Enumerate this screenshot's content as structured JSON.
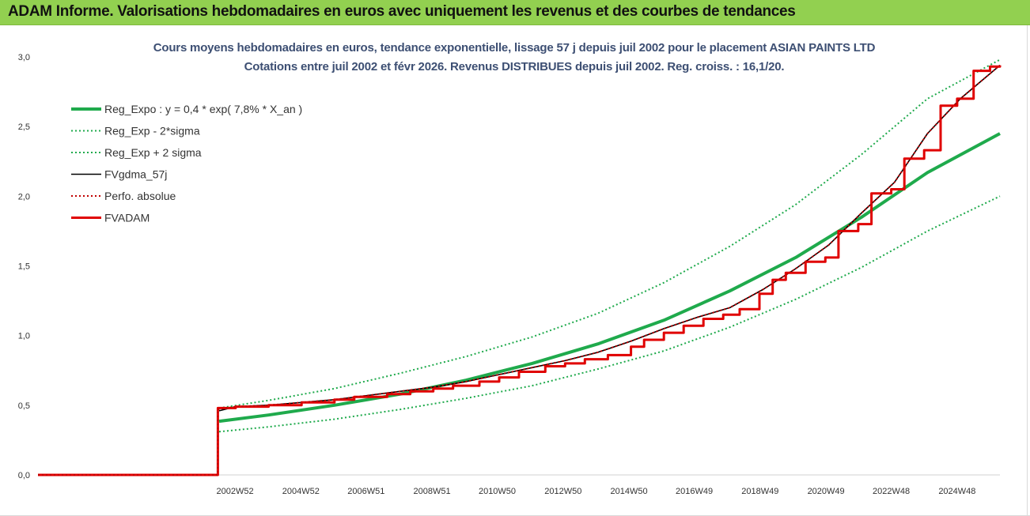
{
  "header": {
    "title": "ADAM Informe. Valorisations hebdomadaires en euros avec uniquement les revenus et des courbes de tendances"
  },
  "chart_data": {
    "type": "line",
    "title": "Cours moyens hebdomadaires en euros, tendance exponentielle, lissage 57 j depuis juil 2002 pour le placement ASIAN PAINTS LTD",
    "subtitle": "Cotations entre juil 2002 et févr 2026.  Revenus DISTRIBUES depuis juil 2002.  Reg. croiss. : 16,1/20.",
    "xlabel": "",
    "ylabel": "",
    "ylim": [
      0,
      3
    ],
    "y_ticks": [
      "0,0",
      "0,5",
      "1,0",
      "1,5",
      "2,0",
      "2,5",
      "3,0"
    ],
    "x_range": [
      1997.0,
      2026.2
    ],
    "x_ticks": [
      {
        "x": 2002.98,
        "label": "2002W52"
      },
      {
        "x": 2004.98,
        "label": "2004W52"
      },
      {
        "x": 2006.96,
        "label": "2006W51"
      },
      {
        "x": 2008.96,
        "label": "2008W51"
      },
      {
        "x": 2010.94,
        "label": "2010W50"
      },
      {
        "x": 2012.94,
        "label": "2012W50"
      },
      {
        "x": 2014.94,
        "label": "2014W50"
      },
      {
        "x": 2016.92,
        "label": "2016W49"
      },
      {
        "x": 2018.92,
        "label": "2018W49"
      },
      {
        "x": 2020.92,
        "label": "2020W49"
      },
      {
        "x": 2022.9,
        "label": "2022W48"
      },
      {
        "x": 2024.9,
        "label": "2024W48"
      }
    ],
    "grid": false,
    "legend_position": "top-left",
    "series": [
      {
        "name": "Reg_Expo : y = 0,4 * exp( 7,8% *  X_an )",
        "color": "#1faa4c",
        "style": "solid-thick",
        "x": [
          2002.5,
          2004,
          2006,
          2008,
          2010,
          2012,
          2014,
          2016,
          2018,
          2020,
          2022,
          2024,
          2026.2
        ],
        "y": [
          0.385,
          0.43,
          0.5,
          0.58,
          0.68,
          0.8,
          0.94,
          1.11,
          1.32,
          1.56,
          1.85,
          2.17,
          2.45
        ]
      },
      {
        "name": "Reg_Exp - 2*sigma",
        "color": "#1faa4c",
        "style": "dotted",
        "x": [
          2002.5,
          2004,
          2006,
          2008,
          2010,
          2012,
          2014,
          2016,
          2018,
          2020,
          2022,
          2024,
          2026.2
        ],
        "y": [
          0.31,
          0.345,
          0.4,
          0.47,
          0.55,
          0.64,
          0.76,
          0.89,
          1.06,
          1.26,
          1.49,
          1.75,
          2.0
        ]
      },
      {
        "name": "Reg_Exp + 2 sigma",
        "color": "#1faa4c",
        "style": "dotted",
        "x": [
          2002.5,
          2004,
          2006,
          2008,
          2010,
          2012,
          2014,
          2016,
          2018,
          2020,
          2022,
          2024,
          2026.2
        ],
        "y": [
          0.48,
          0.535,
          0.62,
          0.73,
          0.85,
          0.99,
          1.16,
          1.38,
          1.64,
          1.94,
          2.3,
          2.7,
          2.98
        ]
      },
      {
        "name": "FVgdma_57j",
        "color": "#000000",
        "style": "solid",
        "x": [
          2002.5,
          2003,
          2004,
          2005,
          2006,
          2007,
          2008,
          2009,
          2010,
          2011,
          2012,
          2013,
          2014,
          2015,
          2016,
          2017,
          2018,
          2019,
          2020,
          2021,
          2022,
          2023,
          2024,
          2025,
          2026.2
        ],
        "y": [
          0.46,
          0.49,
          0.5,
          0.52,
          0.54,
          0.57,
          0.6,
          0.63,
          0.67,
          0.72,
          0.77,
          0.82,
          0.88,
          0.96,
          1.05,
          1.13,
          1.2,
          1.33,
          1.48,
          1.65,
          1.88,
          2.1,
          2.45,
          2.7,
          2.94
        ]
      },
      {
        "name": "Perfo. absolue",
        "color": "#c00000",
        "style": "dotted",
        "x": [
          1997.0,
          2002.45,
          2002.46,
          2003,
          2004,
          2005,
          2006,
          2007,
          2008,
          2009,
          2010,
          2011,
          2012,
          2013,
          2014,
          2015,
          2016,
          2017,
          2018,
          2019,
          2020,
          2021,
          2022,
          2023,
          2024,
          2025,
          2026.2
        ],
        "y": [
          0,
          0,
          0.47,
          0.49,
          0.5,
          0.52,
          0.54,
          0.57,
          0.6,
          0.63,
          0.67,
          0.72,
          0.77,
          0.82,
          0.88,
          0.96,
          1.05,
          1.13,
          1.2,
          1.33,
          1.48,
          1.65,
          1.88,
          2.1,
          2.45,
          2.7,
          2.94
        ]
      },
      {
        "name": "FVADAM",
        "color": "#e00000",
        "style": "step-thick",
        "x": [
          1997.0,
          2002.45,
          2002.46,
          2003.0,
          2004.0,
          2005.0,
          2006.0,
          2006.6,
          2007.6,
          2008.3,
          2009.0,
          2009.6,
          2010.4,
          2011.0,
          2011.6,
          2012.4,
          2013.0,
          2013.6,
          2014.3,
          2015.0,
          2015.4,
          2016.0,
          2016.6,
          2017.2,
          2017.8,
          2018.3,
          2018.9,
          2019.3,
          2019.7,
          2020.3,
          2020.9,
          2021.3,
          2021.9,
          2022.3,
          2022.9,
          2023.3,
          2023.9,
          2024.4,
          2024.9,
          2025.4,
          2025.9,
          2026.2
        ],
        "y": [
          0,
          0,
          0.48,
          0.49,
          0.5,
          0.52,
          0.54,
          0.56,
          0.58,
          0.6,
          0.62,
          0.64,
          0.67,
          0.7,
          0.74,
          0.78,
          0.8,
          0.83,
          0.86,
          0.92,
          0.97,
          1.02,
          1.07,
          1.12,
          1.15,
          1.19,
          1.3,
          1.4,
          1.45,
          1.53,
          1.56,
          1.75,
          1.8,
          2.02,
          2.05,
          2.27,
          2.33,
          2.65,
          2.7,
          2.9,
          2.93,
          2.94
        ]
      }
    ]
  }
}
